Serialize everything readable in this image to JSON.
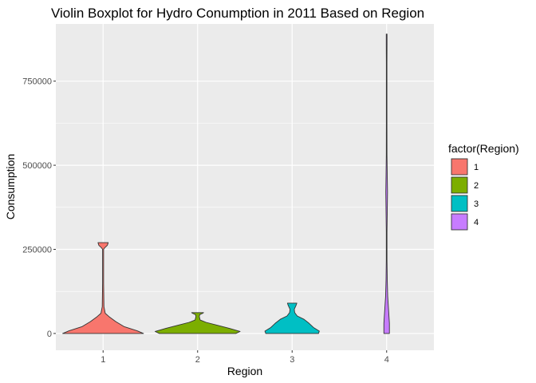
{
  "chart_data": {
    "type": "violin",
    "title": "Violin Boxplot for Hydro Conumption in 2011 Based on Region",
    "xlabel": "Region",
    "ylabel": "Consumption",
    "categories": [
      "1",
      "2",
      "3",
      "4"
    ],
    "ylim": [
      -50000,
      920000
    ],
    "y_ticks": [
      0,
      250000,
      500000,
      750000
    ],
    "y_tick_labels": [
      "0",
      "250000",
      "500000",
      "750000"
    ],
    "grid": true,
    "legend": {
      "title": "factor(Region)",
      "placement": "right",
      "entries": [
        "1",
        "2",
        "3",
        "4"
      ]
    },
    "series": [
      {
        "category": "1",
        "color": "#F8766D",
        "min": 0,
        "max": 270000,
        "density": [
          [
            0,
            0.95
          ],
          [
            8000,
            0.8
          ],
          [
            20000,
            0.5
          ],
          [
            35000,
            0.3
          ],
          [
            50000,
            0.14
          ],
          [
            60000,
            0.05
          ],
          [
            80000,
            0.02
          ],
          [
            150000,
            0.012
          ],
          [
            250000,
            0.012
          ],
          [
            255000,
            0.04
          ],
          [
            262000,
            0.1
          ],
          [
            270000,
            0.12
          ]
        ]
      },
      {
        "category": "2",
        "color": "#7CAE00",
        "min": 0,
        "max": 62000,
        "density": [
          [
            0,
            0.9
          ],
          [
            6000,
            1.0
          ],
          [
            15000,
            0.75
          ],
          [
            25000,
            0.45
          ],
          [
            33000,
            0.2
          ],
          [
            40000,
            0.06
          ],
          [
            50000,
            0.04
          ],
          [
            56000,
            0.05
          ],
          [
            60000,
            0.12
          ],
          [
            62000,
            0.14
          ]
        ]
      },
      {
        "category": "3",
        "color": "#00BFC4",
        "min": 0,
        "max": 90000,
        "density": [
          [
            0,
            0.62
          ],
          [
            7000,
            0.64
          ],
          [
            18000,
            0.5
          ],
          [
            30000,
            0.4
          ],
          [
            42000,
            0.28
          ],
          [
            52000,
            0.12
          ],
          [
            62000,
            0.06
          ],
          [
            72000,
            0.05
          ],
          [
            80000,
            0.08
          ],
          [
            86000,
            0.1
          ],
          [
            90000,
            0.11
          ]
        ]
      },
      {
        "category": "4",
        "color": "#C77CFF",
        "min": 0,
        "max": 890000,
        "density": [
          [
            0,
            0.065
          ],
          [
            30000,
            0.065
          ],
          [
            70000,
            0.045
          ],
          [
            110000,
            0.025
          ],
          [
            160000,
            0.014
          ],
          [
            220000,
            0.008
          ],
          [
            300000,
            0.008
          ],
          [
            360000,
            0.014
          ],
          [
            420000,
            0.02
          ],
          [
            470000,
            0.014
          ],
          [
            530000,
            0.008
          ],
          [
            620000,
            0.007
          ],
          [
            720000,
            0.007
          ],
          [
            800000,
            0.007
          ],
          [
            860000,
            0.009
          ],
          [
            890000,
            0.009
          ]
        ]
      }
    ]
  }
}
